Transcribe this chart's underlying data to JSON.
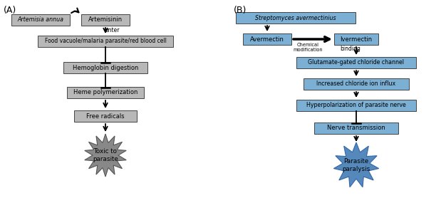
{
  "panel_A_label": "(A)",
  "panel_B_label": "(B)",
  "box_color_gray": "#b8b8b8",
  "box_color_blue": "#7bafd4",
  "box_edge_color": "#444444",
  "text_color": "#000000",
  "star_color_gray": "#888888",
  "star_color_blue": "#5588bb",
  "artemisia_text": "Artemisia annua",
  "artemisinin_text": "Artemisinin",
  "enter_text": "enter",
  "food_vac_text": "Food vacuole/malaria parasite/red blood cell",
  "hemoglobin_text": "Hemoglobin digestion",
  "heme_text": "Heme polymerization",
  "free_rad_text": "Free radicals",
  "toxic_text": "Toxic to\nparasite",
  "strep_text": "Streptomyces avermectinius",
  "avermectin_text": "Avermectin",
  "ivermectin_text": "Ivermectin",
  "chem_mod_text": "Chemical\nmodification",
  "binding_text": "binding",
  "glutamate_text": "Glutamate-gated chloride channel",
  "chloride_text": "Increased chloride ion influx",
  "hyperp_text": "Hyperpolarization of parasite nerve",
  "nerve_text": "Nerve transmission",
  "parasite_text": "Parasite\nparalysis",
  "font_size": 6.0,
  "label_font_size": 9
}
